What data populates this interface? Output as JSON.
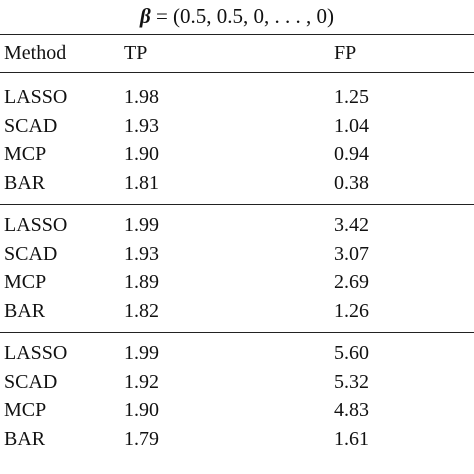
{
  "caption": {
    "beta_symbol": "β",
    "equals_text": "= (0.5, 0.5, 0, . . . , 0)"
  },
  "table": {
    "headers": [
      "Method",
      "TP",
      "FP"
    ],
    "groups": [
      {
        "rows": [
          {
            "method": "LASSO",
            "tp": "1.98",
            "fp": "1.25"
          },
          {
            "method": "SCAD",
            "tp": "1.93",
            "fp": "1.04"
          },
          {
            "method": "MCP",
            "tp": "1.90",
            "fp": "0.94"
          },
          {
            "method": "BAR",
            "tp": "1.81",
            "fp": "0.38"
          }
        ]
      },
      {
        "rows": [
          {
            "method": "LASSO",
            "tp": "1.99",
            "fp": "3.42"
          },
          {
            "method": "SCAD",
            "tp": "1.93",
            "fp": "3.07"
          },
          {
            "method": "MCP",
            "tp": "1.89",
            "fp": "2.69"
          },
          {
            "method": "BAR",
            "tp": "1.82",
            "fp": "1.26"
          }
        ]
      },
      {
        "rows": [
          {
            "method": "LASSO",
            "tp": "1.99",
            "fp": "5.60"
          },
          {
            "method": "SCAD",
            "tp": "1.92",
            "fp": "5.32"
          },
          {
            "method": "MCP",
            "tp": "1.90",
            "fp": "4.83"
          },
          {
            "method": "BAR",
            "tp": "1.79",
            "fp": "1.61"
          }
        ]
      }
    ]
  }
}
